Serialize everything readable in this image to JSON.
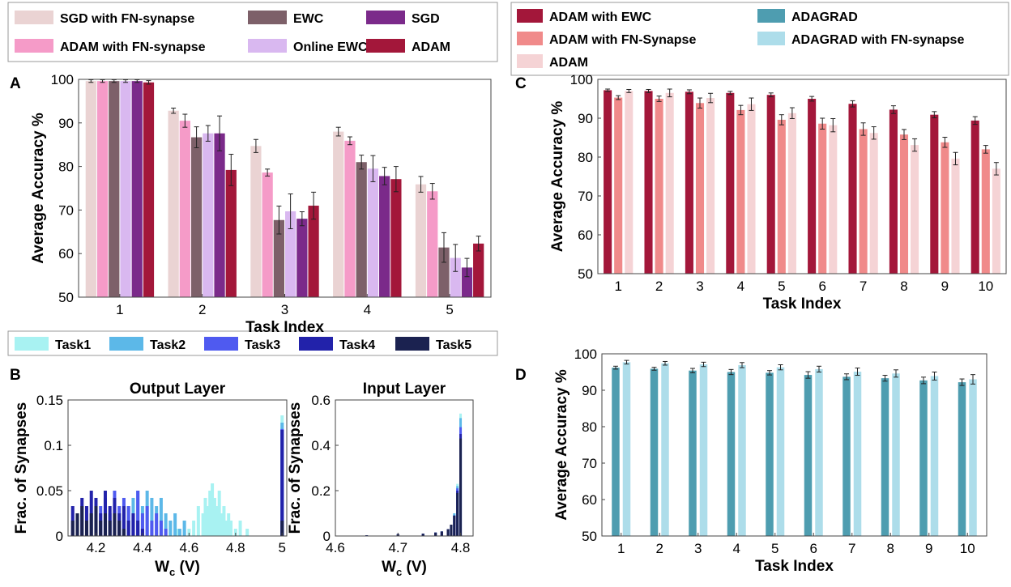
{
  "colors": {
    "sgd_fn": "#EAD3D3",
    "ewc": "#7D6069",
    "sgd": "#7B2A8A",
    "adam_fn": "#F59BC8",
    "online_ewc": "#D9B8F0",
    "adam": "#A3173A",
    "adam_ewc_c": "#A3173A",
    "adam_fn_c": "#F08A8A",
    "adam_c": "#F5D3D5",
    "adagrad": "#4E9DB0",
    "adagrad_fn": "#ADDDEA",
    "task1": "#A8F2F2",
    "task2": "#5CB8E8",
    "task3": "#4F5AF0",
    "task4": "#2222AA",
    "task5": "#1B2250"
  },
  "panels": {
    "a": "A",
    "b": "B",
    "c": "C",
    "d": "D"
  },
  "chart_data": [
    {
      "id": "A",
      "type": "bar",
      "title": "",
      "xlabel": "Task Index",
      "ylabel": "Average Accuracy %",
      "ylim": [
        50,
        100
      ],
      "yticks": [
        "50",
        "60",
        "70",
        "80",
        "90",
        "100"
      ],
      "categories": [
        "1",
        "2",
        "3",
        "4",
        "5"
      ],
      "series": [
        {
          "name": "SGD with FN-synapse",
          "color_key": "sgd_fn",
          "values": [
            99.6,
            92.8,
            84.7,
            88.0,
            75.9
          ],
          "errors": [
            0.3,
            0.6,
            1.5,
            1.0,
            1.8
          ]
        },
        {
          "name": "ADAM with FN-synapse",
          "color_key": "adam_fn",
          "values": [
            99.6,
            90.5,
            78.6,
            85.9,
            74.3
          ],
          "errors": [
            0.3,
            1.5,
            0.8,
            0.9,
            1.8
          ]
        },
        {
          "name": "EWC",
          "color_key": "ewc",
          "values": [
            99.6,
            86.7,
            67.7,
            81.0,
            61.4
          ],
          "errors": [
            0.3,
            2.4,
            3.2,
            1.6,
            3.4
          ]
        },
        {
          "name": "Online EWC",
          "color_key": "online_ewc",
          "values": [
            99.6,
            87.6,
            69.7,
            79.5,
            59.0
          ],
          "errors": [
            0.3,
            1.8,
            4.0,
            3.0,
            3.1
          ]
        },
        {
          "name": "SGD",
          "color_key": "sgd",
          "values": [
            99.6,
            87.6,
            68.0,
            77.8,
            56.8
          ],
          "errors": [
            0.3,
            4.0,
            1.6,
            2.0,
            2.1
          ]
        },
        {
          "name": "ADAM",
          "color_key": "adam",
          "values": [
            99.3,
            79.2,
            71.0,
            77.1,
            62.3
          ],
          "errors": [
            0.4,
            3.6,
            3.1,
            2.9,
            1.7
          ]
        }
      ],
      "legend": {
        "placement": "top",
        "rows": [
          [
            "SGD with FN-synapse",
            "EWC",
            "SGD"
          ],
          [
            "ADAM with FN-synapse",
            "Online EWC",
            "ADAM"
          ]
        ]
      }
    },
    {
      "id": "B-left",
      "type": "bar",
      "title": "Output Layer",
      "xlabel_main": "W",
      "xlabel_sub": "c",
      "xlabel_unit": " (V)",
      "ylabel": "Frac. of Synapses",
      "xlim": [
        4.08,
        5.02
      ],
      "xticks": [
        "4.2",
        "4.4",
        "4.6",
        "4.8",
        "5"
      ],
      "ylim": [
        0,
        0.15
      ],
      "yticks": [
        "0",
        "0.05",
        "0.1",
        "0.15"
      ],
      "series": [
        {
          "name": "Task1",
          "color_key": "task1",
          "x": [
            4.52,
            4.55,
            4.58,
            4.6,
            4.62,
            4.64,
            4.66,
            4.67,
            4.68,
            4.69,
            4.7,
            4.71,
            4.72,
            4.73,
            4.74,
            4.75,
            4.76,
            4.77,
            4.78,
            4.8,
            4.82,
            4.85,
            5.0
          ],
          "values": [
            0.017,
            0.008,
            0.017,
            0.008,
            0.017,
            0.033,
            0.025,
            0.042,
            0.033,
            0.05,
            0.058,
            0.042,
            0.033,
            0.05,
            0.025,
            0.033,
            0.017,
            0.025,
            0.017,
            0.008,
            0.017,
            0.008,
            0.133
          ]
        },
        {
          "name": "Task2",
          "color_key": "task2",
          "x": [
            4.32,
            4.34,
            4.36,
            4.38,
            4.4,
            4.42,
            4.44,
            4.46,
            4.48,
            4.5,
            4.52,
            4.54,
            4.56,
            4.58,
            5.0
          ],
          "values": [
            0.025,
            0.033,
            0.042,
            0.05,
            0.033,
            0.05,
            0.042,
            0.033,
            0.042,
            0.025,
            0.017,
            0.025,
            0.008,
            0.017,
            0.125
          ]
        },
        {
          "name": "Task3",
          "color_key": "task3",
          "x": [
            4.22,
            4.24,
            4.26,
            4.28,
            4.3,
            4.32,
            4.34,
            4.36,
            4.38,
            4.4,
            4.42,
            4.44,
            4.46,
            4.48,
            4.5,
            5.0
          ],
          "values": [
            0.033,
            0.042,
            0.025,
            0.05,
            0.033,
            0.042,
            0.033,
            0.025,
            0.05,
            0.025,
            0.033,
            0.017,
            0.025,
            0.017,
            0.008,
            0.118
          ]
        },
        {
          "name": "Task4",
          "color_key": "task4",
          "x": [
            4.1,
            4.12,
            4.14,
            4.16,
            4.18,
            4.2,
            4.22,
            4.24,
            4.26,
            4.28,
            4.3,
            4.32,
            4.34,
            4.36,
            4.38,
            4.4,
            5.0
          ],
          "values": [
            0.033,
            0.025,
            0.042,
            0.033,
            0.05,
            0.042,
            0.025,
            0.05,
            0.033,
            0.042,
            0.025,
            0.033,
            0.017,
            0.025,
            0.017,
            0.008,
            0.117
          ]
        },
        {
          "name": "Task5",
          "color_key": "task5",
          "x": [
            4.1,
            4.12,
            4.14,
            4.16,
            4.18,
            4.2,
            4.22,
            4.24,
            4.26,
            4.28,
            4.3,
            4.32,
            5.0
          ],
          "values": [
            0.017,
            0.025,
            0.033,
            0.017,
            0.025,
            0.033,
            0.017,
            0.025,
            0.017,
            0.025,
            0.017,
            0.008,
            0.017
          ]
        }
      ],
      "legend": {
        "placement": "top",
        "entries": [
          "Task1",
          "Task2",
          "Task3",
          "Task4",
          "Task5"
        ]
      }
    },
    {
      "id": "B-right",
      "type": "bar",
      "title": "Input Layer",
      "xlabel_main": "W",
      "xlabel_sub": "c",
      "xlabel_unit": " (V)",
      "ylabel": "Frac. of Synapses",
      "xlim": [
        4.6,
        4.82
      ],
      "xticks": [
        "4.6",
        "4.7",
        "4.8"
      ],
      "ylim": [
        0,
        0.6
      ],
      "yticks": [
        "0",
        "0.2",
        "0.4",
        "0.6"
      ],
      "series": [
        {
          "name": "Task1",
          "color_key": "task1",
          "x": [
            4.65,
            4.7,
            4.74,
            4.76,
            4.77,
            4.78,
            4.785,
            4.79,
            4.795,
            4.8
          ],
          "values": [
            0.003,
            0.008,
            0.01,
            0.015,
            0.02,
            0.03,
            0.05,
            0.1,
            0.23,
            0.54
          ]
        },
        {
          "name": "Task2",
          "color_key": "task2",
          "x": [
            4.65,
            4.7,
            4.74,
            4.76,
            4.77,
            4.78,
            4.785,
            4.79,
            4.795,
            4.8
          ],
          "values": [
            0.003,
            0.008,
            0.01,
            0.015,
            0.02,
            0.03,
            0.05,
            0.1,
            0.22,
            0.52
          ]
        },
        {
          "name": "Task3",
          "color_key": "task3",
          "x": [
            4.65,
            4.7,
            4.74,
            4.76,
            4.77,
            4.78,
            4.785,
            4.79,
            4.795,
            4.8
          ],
          "values": [
            0.003,
            0.008,
            0.01,
            0.015,
            0.02,
            0.03,
            0.05,
            0.09,
            0.21,
            0.48
          ]
        },
        {
          "name": "Task4",
          "color_key": "task4",
          "x": [
            4.65,
            4.7,
            4.74,
            4.76,
            4.77,
            4.78,
            4.785,
            4.79,
            4.795,
            4.8
          ],
          "values": [
            0.003,
            0.008,
            0.01,
            0.015,
            0.02,
            0.03,
            0.05,
            0.09,
            0.2,
            0.45
          ]
        },
        {
          "name": "Task5",
          "color_key": "task5",
          "x": [
            4.65,
            4.7,
            4.74,
            4.76,
            4.77,
            4.78,
            4.785,
            4.79,
            4.795,
            4.8
          ],
          "values": [
            0.003,
            0.008,
            0.01,
            0.015,
            0.02,
            0.03,
            0.05,
            0.09,
            0.19,
            0.43
          ]
        }
      ]
    },
    {
      "id": "C",
      "type": "bar",
      "title": "",
      "xlabel": "Task Index",
      "ylabel": "Average Accuracy %",
      "ylim": [
        50,
        100
      ],
      "yticks": [
        "50",
        "60",
        "70",
        "80",
        "90",
        "100"
      ],
      "categories": [
        "1",
        "2",
        "3",
        "4",
        "5",
        "6",
        "7",
        "8",
        "9",
        "10"
      ],
      "series": [
        {
          "name": "ADAM with EWC",
          "color_key": "adam_ewc_c",
          "values": [
            97.2,
            97.0,
            96.8,
            96.5,
            96.0,
            95.0,
            93.7,
            92.2,
            90.9,
            89.4
          ],
          "errors": [
            0.3,
            0.4,
            0.5,
            0.4,
            0.5,
            0.6,
            0.8,
            1.0,
            0.8,
            1.0
          ]
        },
        {
          "name": "ADAM with FN-Synapse",
          "color_key": "adam_fn_c",
          "values": [
            95.3,
            95.0,
            93.9,
            92.1,
            89.6,
            88.6,
            87.2,
            85.8,
            83.8,
            82.0
          ],
          "errors": [
            0.5,
            0.7,
            1.3,
            1.2,
            1.3,
            1.4,
            1.6,
            1.3,
            1.3,
            1.0
          ]
        },
        {
          "name": "ADAM",
          "color_key": "adam_c",
          "values": [
            97.0,
            96.5,
            95.2,
            93.6,
            91.3,
            88.2,
            86.2,
            83.1,
            79.6,
            77.0
          ],
          "errors": [
            0.4,
            1.0,
            1.2,
            1.6,
            1.4,
            1.7,
            1.6,
            1.6,
            1.6,
            1.6
          ]
        }
      ],
      "legend": {
        "placement": "top",
        "col1": [
          "ADAM with EWC",
          "ADAM with FN-Synapse",
          "ADAM"
        ],
        "col2": [
          "ADAGRAD",
          "ADAGRAD with FN-synapse"
        ]
      }
    },
    {
      "id": "D",
      "type": "bar",
      "title": "",
      "xlabel": "Task Index",
      "ylabel": "Average Accuracy %",
      "ylim": [
        50,
        100
      ],
      "yticks": [
        "50",
        "60",
        "70",
        "80",
        "90",
        "100"
      ],
      "categories": [
        "1",
        "2",
        "3",
        "4",
        "5",
        "6",
        "7",
        "8",
        "9",
        "10"
      ],
      "series": [
        {
          "name": "ADAGRAD",
          "color_key": "adagrad",
          "values": [
            96.2,
            95.9,
            95.4,
            95.0,
            94.8,
            94.2,
            93.7,
            93.3,
            92.7,
            92.2
          ],
          "errors": [
            0.4,
            0.4,
            0.6,
            0.7,
            0.6,
            0.9,
            0.8,
            0.8,
            0.9,
            0.9
          ]
        },
        {
          "name": "ADAGRAD with FN-synapse",
          "color_key": "adagrad_fn",
          "values": [
            97.7,
            97.4,
            97.1,
            96.9,
            96.3,
            95.8,
            95.1,
            94.6,
            93.9,
            93.0
          ],
          "errors": [
            0.5,
            0.5,
            0.6,
            0.7,
            0.7,
            0.8,
            1.0,
            1.0,
            1.1,
            1.3
          ]
        }
      ]
    }
  ]
}
